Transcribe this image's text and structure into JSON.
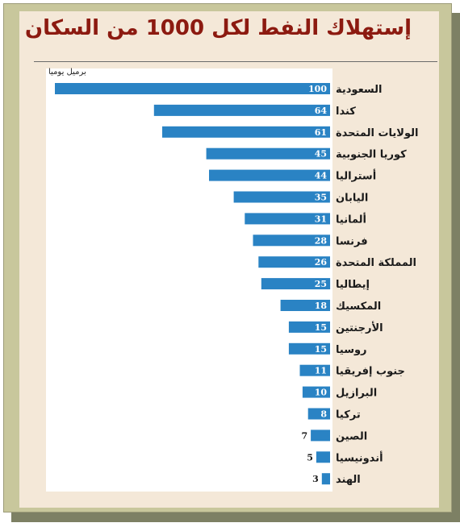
{
  "title": "إستهلاك النفط لكل 1000 من السكان",
  "chart_data": {
    "type": "bar",
    "orientation": "horizontal",
    "title": "إستهلاك النفط لكل 1000 من السكان",
    "unit_label": "برميل يوميا",
    "categories": [
      "السعودية",
      "كندا",
      "الولايات المتحدة",
      "كوريا الجنوبية",
      "أستراليا",
      "اليابان",
      "ألمانيا",
      "فرنسا",
      "المملكة المتحدة",
      "إيطاليا",
      "المكسيك",
      "الأرجنتين",
      "روسيا",
      "جنوب إفريقيا",
      "البرازيل",
      "تركيا",
      "الصين",
      "أندونيسيا",
      "الهند"
    ],
    "values": [
      100,
      64,
      61,
      45,
      44,
      35,
      31,
      28,
      26,
      25,
      18,
      15,
      15,
      11,
      10,
      8,
      7,
      5,
      3
    ],
    "xlim": [
      0,
      100
    ],
    "grid": false,
    "bar_color": "#2a83c4"
  }
}
